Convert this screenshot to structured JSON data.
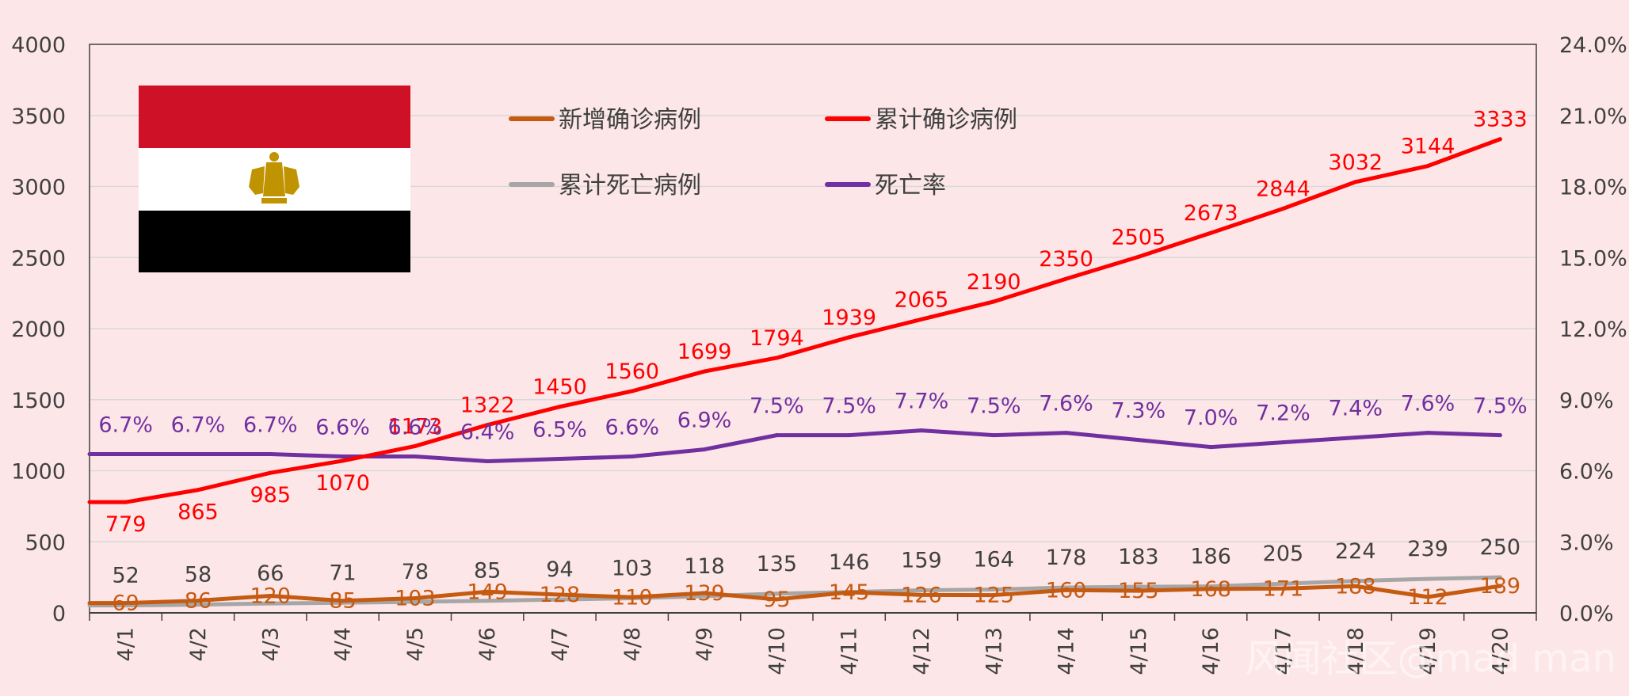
{
  "chart_data": {
    "type": "line",
    "categories": [
      "4/1",
      "4/2",
      "4/3",
      "4/4",
      "4/5",
      "4/6",
      "4/7",
      "4/8",
      "4/9",
      "4/10",
      "4/11",
      "4/12",
      "4/13",
      "4/14",
      "4/15",
      "4/16",
      "4/17",
      "4/18",
      "4/19",
      "4/20"
    ],
    "y_left": {
      "min": 0,
      "max": 4000,
      "ticks": [
        "0",
        "500",
        "1000",
        "1500",
        "2000",
        "2500",
        "3000",
        "3500",
        "4000"
      ]
    },
    "y_right": {
      "min": 0,
      "max": 24,
      "ticks": [
        "0.0%",
        "3.0%",
        "6.0%",
        "9.0%",
        "12.0%",
        "15.0%",
        "18.0%",
        "21.0%",
        "24.0%"
      ]
    },
    "grid": true,
    "legend_position": "top",
    "series": [
      {
        "name": "新增确诊病例",
        "color": "#c55a11",
        "axis": "left",
        "values": [
          69,
          86,
          120,
          85,
          103,
          149,
          128,
          110,
          139,
          95,
          145,
          126,
          125,
          160,
          155,
          168,
          171,
          188,
          112,
          189
        ],
        "labels": [
          "69",
          "86",
          "120",
          "85",
          "103",
          "149",
          "128",
          "110",
          "139",
          "95",
          "145",
          "126",
          "125",
          "160",
          "155",
          "168",
          "171",
          "188",
          "112",
          "189"
        ]
      },
      {
        "name": "累计确诊病例",
        "color": "#ff0000",
        "axis": "left",
        "values": [
          779,
          865,
          985,
          1070,
          1173,
          1322,
          1450,
          1560,
          1699,
          1794,
          1939,
          2065,
          2190,
          2350,
          2505,
          2673,
          2844,
          3032,
          3144,
          3333
        ],
        "labels": [
          "779",
          "865",
          "985",
          "1070",
          "1173",
          "1322",
          "1450",
          "1560",
          "1699",
          "1794",
          "1939",
          "2065",
          "2190",
          "2350",
          "2505",
          "2673",
          "2844",
          "3032",
          "3144",
          "3333"
        ]
      },
      {
        "name": "累计死亡病例",
        "color": "#a6a6a6",
        "axis": "left",
        "values": [
          52,
          58,
          66,
          71,
          78,
          85,
          94,
          103,
          118,
          135,
          146,
          159,
          164,
          178,
          183,
          186,
          205,
          224,
          239,
          250
        ],
        "labels": [
          "52",
          "58",
          "66",
          "71",
          "78",
          "85",
          "94",
          "103",
          "118",
          "135",
          "146",
          "159",
          "164",
          "178",
          "183",
          "186",
          "205",
          "224",
          "239",
          "250"
        ]
      },
      {
        "name": "死亡率",
        "color": "#7030a0",
        "axis": "right",
        "values": [
          6.7,
          6.7,
          6.7,
          6.6,
          6.6,
          6.4,
          6.5,
          6.6,
          6.9,
          7.5,
          7.5,
          7.7,
          7.5,
          7.6,
          7.3,
          7.0,
          7.2,
          7.4,
          7.6,
          7.5
        ],
        "labels": [
          "6.7%",
          "6.7%",
          "6.7%",
          "6.6%",
          "6.6%",
          "6.4%",
          "6.5%",
          "6.6%",
          "6.9%",
          "7.5%",
          "7.5%",
          "7.7%",
          "7.5%",
          "7.6%",
          "7.3%",
          "7.0%",
          "7.2%",
          "7.4%",
          "7.6%",
          "7.5%"
        ]
      }
    ]
  },
  "colors": {
    "background": "#fde6e8",
    "flag_red": "#ce1126",
    "flag_white": "#ffffff",
    "flag_black": "#000000",
    "eagle": "#c09300"
  },
  "watermark": "风闻社区@mad man"
}
